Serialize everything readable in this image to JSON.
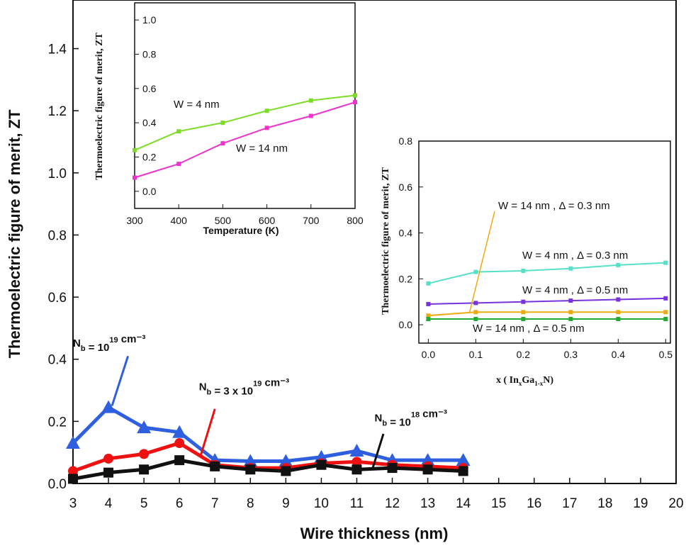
{
  "chart_data": [
    {
      "type": "line",
      "xlabel": "Wire thickness (nm)",
      "ylabel": "Thermoelectric figure of merit, ZT",
      "xlim": [
        3,
        20
      ],
      "ylim": [
        0,
        1.4
      ],
      "xticks": [
        3,
        4,
        5,
        6,
        7,
        8,
        9,
        10,
        11,
        12,
        13,
        14,
        15,
        16,
        17,
        18,
        19,
        20
      ],
      "yticks": [
        0.0,
        0.2,
        0.4,
        0.6,
        0.8,
        1.0,
        1.2,
        1.4
      ],
      "tick_labels_y": [
        "0.0",
        "0.2",
        "0.4",
        "0.6",
        "0.8",
        "1.0",
        "1.2",
        "1.4"
      ],
      "series": [
        {
          "color": "#2e5fe0",
          "marker": "triangle",
          "x": [
            3,
            4,
            5,
            6,
            7,
            8,
            9,
            10,
            11,
            12,
            13,
            14
          ],
          "y": [
            0.13,
            0.245,
            0.18,
            0.165,
            0.075,
            0.072,
            0.072,
            0.085,
            0.105,
            0.075,
            0.075,
            0.075
          ]
        },
        {
          "color": "#ee1111",
          "marker": "circle",
          "x": [
            3,
            4,
            5,
            6,
            7,
            8,
            9,
            10,
            11,
            12,
            13,
            14
          ],
          "y": [
            0.04,
            0.08,
            0.095,
            0.13,
            0.06,
            0.05,
            0.05,
            0.065,
            0.07,
            0.06,
            0.055,
            0.05
          ]
        },
        {
          "color": "#111111",
          "marker": "square",
          "x": [
            3,
            4,
            5,
            6,
            7,
            8,
            9,
            10,
            11,
            12,
            13,
            14
          ],
          "y": [
            0.015,
            0.035,
            0.045,
            0.075,
            0.055,
            0.045,
            0.04,
            0.06,
            0.045,
            0.05,
            0.045,
            0.04
          ]
        }
      ],
      "annotations": [
        {
          "base": "N",
          "sub": "b",
          "mid": " = 10",
          "sup": "19",
          "tail": " cm⁻³",
          "color": "#2e5fe0",
          "text_at": [
            3,
            0.44
          ],
          "arrow_from": [
            4.55,
            0.41
          ],
          "arrow_to": [
            4.1,
            0.25
          ]
        },
        {
          "base": "N",
          "sub": "b",
          "mid": " = 3 x 10",
          "sup": "19",
          "tail": " cm⁻³",
          "color": "#ee1111",
          "text_at": [
            6.55,
            0.3
          ],
          "arrow_from": [
            7.0,
            0.24
          ],
          "arrow_to": [
            6.6,
            0.09
          ]
        },
        {
          "base": "N",
          "sub": "b",
          "mid": " = 10",
          "sup": "18",
          "tail": " cm⁻³",
          "color": "#111111",
          "text_at": [
            11.5,
            0.2
          ],
          "arrow_from": [
            11.75,
            0.16
          ],
          "arrow_to": [
            11.45,
            0.05
          ]
        }
      ]
    },
    {
      "type": "line",
      "xlabel": "Temperature (K)",
      "ylabel": "Thermoelectric figure of merit, ZT",
      "xlim": [
        300,
        800
      ],
      "ylim": [
        -0.1,
        1.1
      ],
      "xticks": [
        300,
        400,
        500,
        600,
        700,
        800
      ],
      "yticks": [
        0.0,
        0.2,
        0.4,
        0.6,
        0.8,
        1.0
      ],
      "tick_labels_y": [
        "0.0",
        "0.2",
        "0.4",
        "0.6",
        "0.8",
        "1.0"
      ],
      "series": [
        {
          "label": "W = 4 nm",
          "color": "#7ddc28",
          "x": [
            300,
            400,
            500,
            600,
            700,
            800
          ],
          "y": [
            0.24,
            0.35,
            0.4,
            0.47,
            0.53,
            0.56
          ]
        },
        {
          "label": "W = 14 nm",
          "color": "#ee33cc",
          "x": [
            300,
            400,
            500,
            600,
            700,
            800
          ],
          "y": [
            0.08,
            0.16,
            0.28,
            0.37,
            0.44,
            0.52
          ]
        }
      ]
    },
    {
      "type": "line",
      "xlabel": "x ( InxGa1-xN)",
      "ylabel": "Thermoelectric figure of merit, ZT",
      "xlim": [
        -0.02,
        0.51
      ],
      "ylim": [
        -0.08,
        0.8
      ],
      "xticks": [
        0.0,
        0.1,
        0.2,
        0.3,
        0.4,
        0.5
      ],
      "yticks": [
        0.0,
        0.2,
        0.4,
        0.6,
        0.8
      ],
      "tick_labels_x": [
        "0.0",
        "0.1",
        "0.2",
        "0.3",
        "0.4",
        "0.5"
      ],
      "tick_labels_y": [
        "0.0",
        "0.2",
        "0.4",
        "0.6",
        "0.8"
      ],
      "series": [
        {
          "label": "W = 4 nm , Δ = 0.3 nm",
          "color": "#55e0c8",
          "x": [
            0,
            0.1,
            0.2,
            0.3,
            0.4,
            0.5
          ],
          "y": [
            0.18,
            0.23,
            0.235,
            0.245,
            0.26,
            0.27
          ]
        },
        {
          "label": "W = 4 nm , Δ = 0.5 nm",
          "color": "#7733dd",
          "x": [
            0,
            0.1,
            0.2,
            0.3,
            0.4,
            0.5
          ],
          "y": [
            0.09,
            0.095,
            0.1,
            0.105,
            0.11,
            0.115
          ]
        },
        {
          "label": "W = 14 nm , Δ = 0.3 nm",
          "color": "#eeaa11",
          "x": [
            0,
            0.1,
            0.2,
            0.3,
            0.4,
            0.5
          ],
          "y": [
            0.04,
            0.055,
            0.055,
            0.055,
            0.055,
            0.055
          ]
        },
        {
          "label": "W = 14 nm , Δ = 0.5 nm",
          "color": "#22aa33",
          "x": [
            0,
            0.1,
            0.2,
            0.3,
            0.4,
            0.5
          ],
          "y": [
            0.025,
            0.025,
            0.025,
            0.025,
            0.025,
            0.025
          ]
        }
      ],
      "tick_labels_x_plain": true,
      "xlabel_parts": {
        "pre": "x ( In",
        "s1": "x",
        "mid": "Ga",
        "s2": "1-x",
        "post": "N)"
      }
    }
  ]
}
